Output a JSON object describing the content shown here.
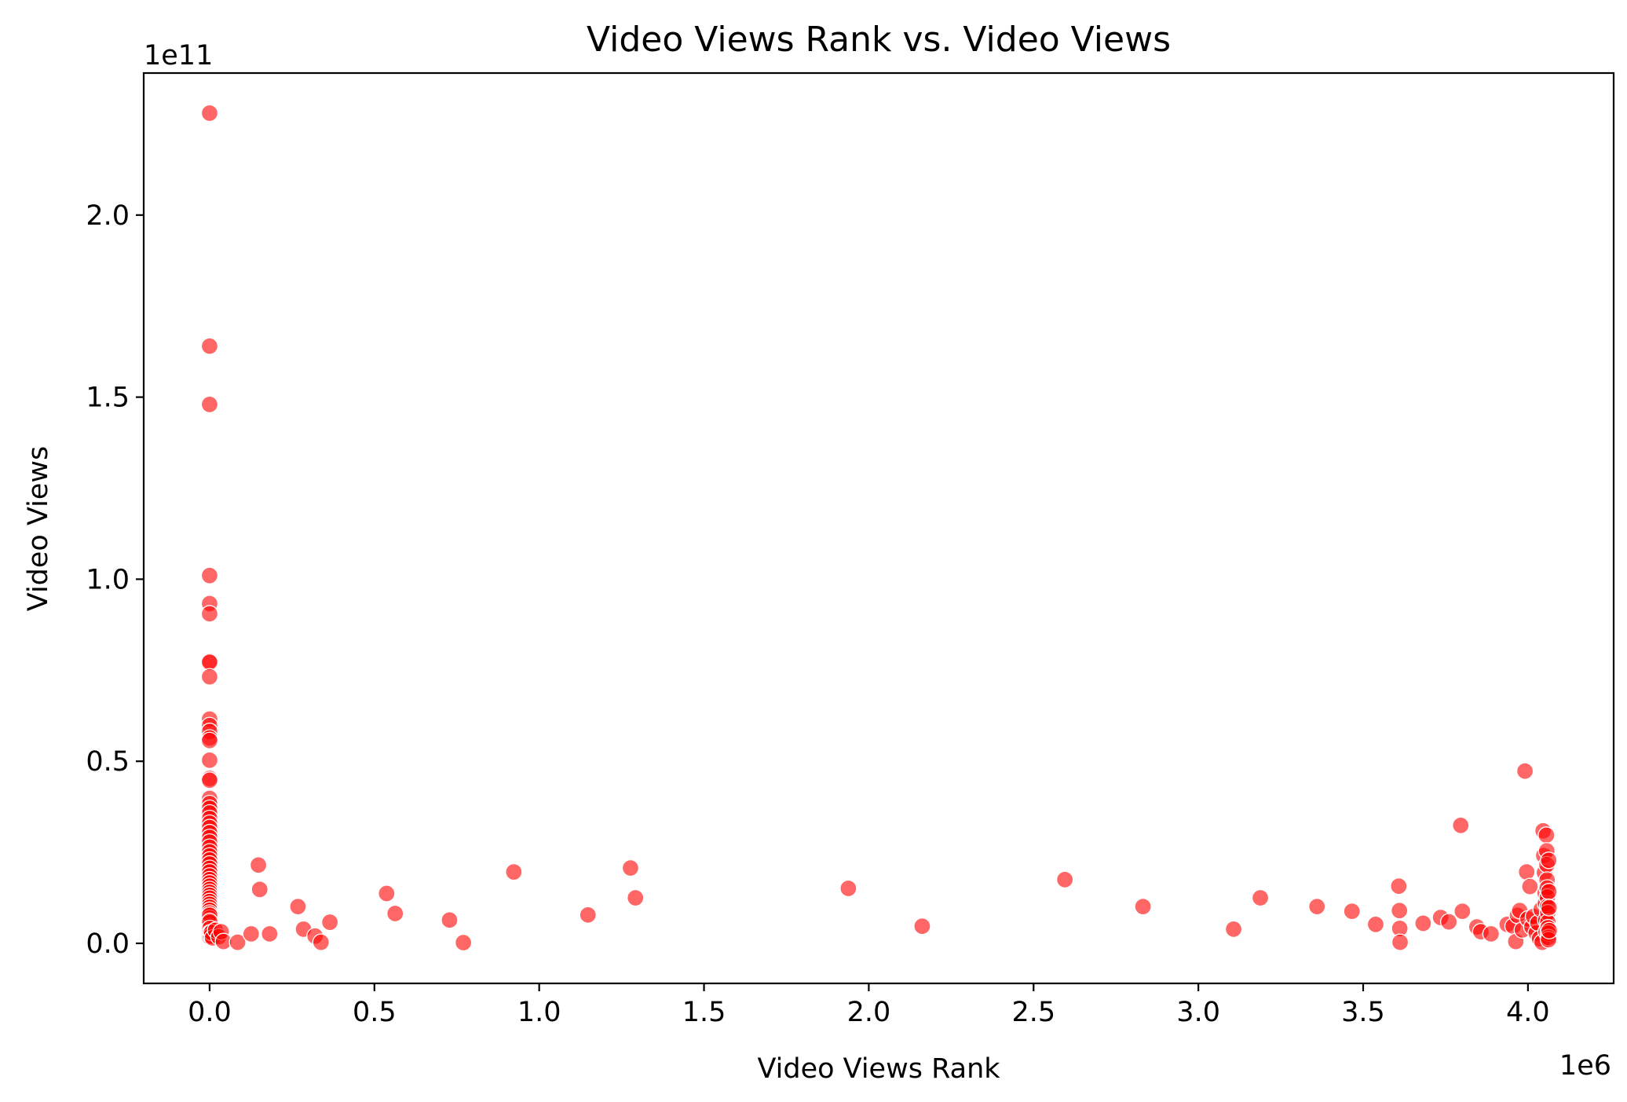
{
  "chart_data": {
    "type": "scatter",
    "title": "Video Views Rank vs. Video Views",
    "xlabel": "Video Views Rank",
    "ylabel": "Video Views",
    "x_offset_label": "1e6",
    "y_offset_label": "1e11",
    "xlim": [
      -200000,
      4260000
    ],
    "ylim": [
      -11000000000,
      239000000000
    ],
    "x_ticks": [
      {
        "value": 0,
        "label": "0.0"
      },
      {
        "value": 500000,
        "label": "0.5"
      },
      {
        "value": 1000000,
        "label": "1.0"
      },
      {
        "value": 1500000,
        "label": "1.5"
      },
      {
        "value": 2000000,
        "label": "2.0"
      },
      {
        "value": 2500000,
        "label": "2.5"
      },
      {
        "value": 3000000,
        "label": "3.0"
      },
      {
        "value": 3500000,
        "label": "3.5"
      },
      {
        "value": 4000000,
        "label": "4.0"
      }
    ],
    "y_ticks": [
      {
        "value": 0,
        "label": "0.0"
      },
      {
        "value": 50000000000,
        "label": "0.5"
      },
      {
        "value": 100000000000,
        "label": "1.0"
      },
      {
        "value": 150000000000,
        "label": "1.5"
      },
      {
        "value": 200000000000,
        "label": "2.0"
      }
    ],
    "grid": false,
    "marker_color": "#ff0000",
    "series": [
      {
        "points": [
          [
            1,
            228000000000
          ],
          [
            2,
            164000000000
          ],
          [
            3,
            148000000000
          ],
          [
            4,
            101000000000
          ],
          [
            5,
            93300000000
          ],
          [
            6,
            90500000000
          ],
          [
            7,
            77500000000
          ],
          [
            8,
            77200000000
          ],
          [
            9,
            73200000000
          ],
          [
            10,
            61600000000
          ],
          [
            11,
            59800000000
          ],
          [
            12,
            58200000000
          ],
          [
            13,
            56400000000
          ],
          [
            14,
            55700000000
          ],
          [
            15,
            50300000000
          ],
          [
            16,
            45300000000
          ],
          [
            17,
            44800000000
          ],
          [
            18,
            39800000000
          ],
          [
            19,
            38400000000
          ],
          [
            20,
            37100000000
          ],
          [
            21,
            35800000000
          ],
          [
            22,
            34300000000
          ],
          [
            23,
            33000000000
          ],
          [
            24,
            31800000000
          ],
          [
            25,
            30400000000
          ],
          [
            26,
            29100000000
          ],
          [
            27,
            27800000000
          ],
          [
            28,
            26400000000
          ],
          [
            29,
            25100000000
          ],
          [
            30,
            24000000000
          ],
          [
            31,
            22900000000
          ],
          [
            32,
            21800000000
          ],
          [
            33,
            20600000000
          ],
          [
            34,
            19600000000
          ],
          [
            35,
            18500000000
          ],
          [
            36,
            17500000000
          ],
          [
            37,
            16600000000
          ],
          [
            38,
            15700000000
          ],
          [
            39,
            14800000000
          ],
          [
            40,
            14000000000
          ],
          [
            41,
            13200000000
          ],
          [
            42,
            12400000000
          ],
          [
            43,
            11500000000
          ],
          [
            44,
            10700000000
          ],
          [
            45,
            9900000000
          ],
          [
            46,
            9100000000
          ],
          [
            47,
            8300000000
          ],
          [
            48,
            7600000000
          ],
          [
            49,
            6900000000
          ],
          [
            50,
            6200000000
          ],
          [
            51,
            5500000000
          ],
          [
            52,
            4700000000
          ],
          [
            53,
            3900000000
          ],
          [
            54,
            3200000000
          ],
          [
            55,
            2500000000
          ],
          [
            56,
            1800000000
          ],
          [
            200,
            7800000000
          ],
          [
            500,
            5900000000
          ],
          [
            1000,
            4100000000
          ],
          [
            2000,
            2900000000
          ],
          [
            4000,
            2000000000
          ],
          [
            6000,
            3000000000
          ],
          [
            9000,
            1500000000
          ],
          [
            18000,
            3600000000
          ],
          [
            28000,
            1800000000
          ],
          [
            35000,
            3200000000
          ],
          [
            42000,
            500000000
          ],
          [
            85000,
            300000000
          ],
          [
            126000,
            2600000000
          ],
          [
            148000,
            21500000000
          ],
          [
            152000,
            14800000000
          ],
          [
            182000,
            2600000000
          ],
          [
            268000,
            10100000000
          ],
          [
            285000,
            3900000000
          ],
          [
            320000,
            2000000000
          ],
          [
            338000,
            300000000
          ],
          [
            365000,
            5800000000
          ],
          [
            537000,
            13700000000
          ],
          [
            563000,
            8200000000
          ],
          [
            728000,
            6400000000
          ],
          [
            770000,
            200000000
          ],
          [
            923000,
            19600000000
          ],
          [
            1148000,
            7800000000
          ],
          [
            1277000,
            20700000000
          ],
          [
            1292000,
            12500000000
          ],
          [
            1938000,
            15100000000
          ],
          [
            2162000,
            4700000000
          ],
          [
            2595000,
            17500000000
          ],
          [
            2832000,
            10100000000
          ],
          [
            3107000,
            3900000000
          ],
          [
            3188000,
            12500000000
          ],
          [
            3360000,
            10100000000
          ],
          [
            3466000,
            8800000000
          ],
          [
            3538000,
            5200000000
          ],
          [
            3608000,
            15700000000
          ],
          [
            3610000,
            9000000000
          ],
          [
            3611000,
            4100000000
          ],
          [
            3612000,
            300000000
          ],
          [
            3682000,
            5500000000
          ],
          [
            3735000,
            7100000000
          ],
          [
            3760000,
            5900000000
          ],
          [
            3796000,
            32400000000
          ],
          [
            3801000,
            8800000000
          ],
          [
            3845000,
            4500000000
          ],
          [
            3857000,
            3200000000
          ],
          [
            3888000,
            2600000000
          ],
          [
            3937000,
            5200000000
          ],
          [
            3955000,
            4700000000
          ],
          [
            3963000,
            500000000
          ],
          [
            3968000,
            7700000000
          ],
          [
            3975000,
            9000000000
          ],
          [
            3983000,
            3700000000
          ],
          [
            3991000,
            47300000000
          ],
          [
            3996000,
            19600000000
          ],
          [
            4000000,
            6700000000
          ],
          [
            4006000,
            15600000000
          ],
          [
            4012000,
            4500000000
          ],
          [
            4017000,
            7400000000
          ],
          [
            4025000,
            2800000000
          ],
          [
            4030000,
            5600000000
          ],
          [
            4035000,
            1300000000
          ],
          [
            4040000,
            9300000000
          ],
          [
            4043000,
            300000000
          ],
          [
            4046000,
            30900000000
          ],
          [
            4048000,
            24100000000
          ],
          [
            4050000,
            19400000000
          ],
          [
            4052000,
            13800000000
          ],
          [
            4053000,
            11000000000
          ],
          [
            4054000,
            6400000000
          ],
          [
            4055000,
            3200000000
          ],
          [
            4056000,
            29700000000
          ],
          [
            4057000,
            25400000000
          ],
          [
            4057500,
            21600000000
          ],
          [
            4058000,
            17400000000
          ],
          [
            4058500,
            15200000000
          ],
          [
            4059000,
            12700000000
          ],
          [
            4059500,
            10100000000
          ],
          [
            4060000,
            8400000000
          ],
          [
            4060500,
            5800000000
          ],
          [
            4061000,
            4300000000
          ],
          [
            4061500,
            2800000000
          ],
          [
            4062000,
            1600000000
          ],
          [
            4062500,
            1000000000
          ],
          [
            4063000,
            22800000000
          ],
          [
            4063500,
            14200000000
          ],
          [
            4064000,
            9800000000
          ],
          [
            4064500,
            3500000000
          ]
        ]
      }
    ]
  }
}
